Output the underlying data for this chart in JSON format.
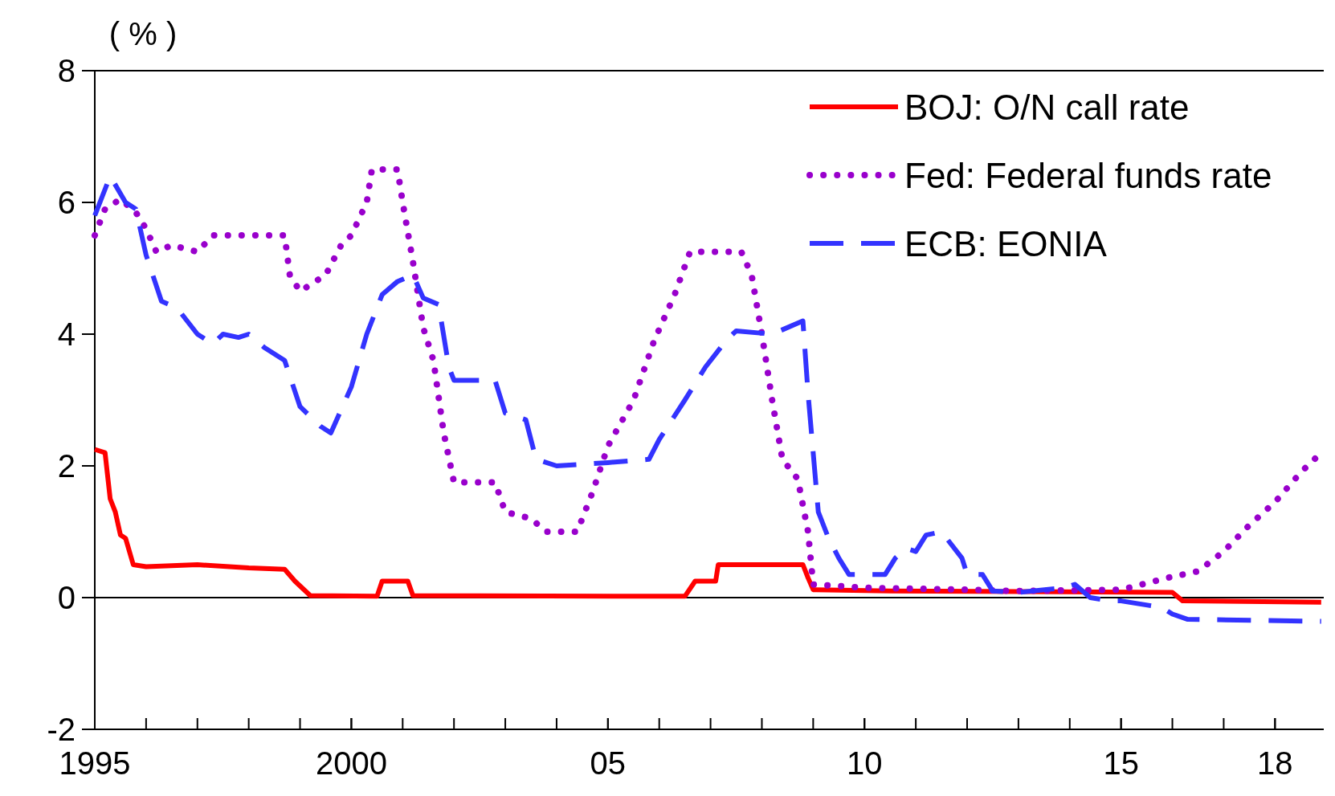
{
  "chart_data": {
    "type": "line",
    "ylabel": "( % )",
    "xlim": [
      1995,
      2018.95
    ],
    "ylim": [
      -2,
      8
    ],
    "yticks": [
      -2,
      0,
      2,
      4,
      6,
      8
    ],
    "xticks": [
      {
        "value": 1995,
        "label": "1995"
      },
      {
        "value": 2000,
        "label": "2000"
      },
      {
        "value": 2005,
        "label": "05"
      },
      {
        "value": 2010,
        "label": "10"
      },
      {
        "value": 2015,
        "label": "15"
      },
      {
        "value": 2018,
        "label": "18"
      },
      {
        "value": 1996,
        "label": null
      },
      {
        "value": 1997,
        "label": null
      },
      {
        "value": 1998,
        "label": null
      },
      {
        "value": 1999,
        "label": null
      },
      {
        "value": 2000,
        "label": null
      },
      {
        "value": 2001,
        "label": null
      },
      {
        "value": 2002,
        "label": null
      },
      {
        "value": 2003,
        "label": null
      },
      {
        "value": 2004,
        "label": null
      },
      {
        "value": 2005,
        "label": null
      },
      {
        "value": 2006,
        "label": null
      },
      {
        "value": 2007,
        "label": null
      },
      {
        "value": 2008,
        "label": null
      },
      {
        "value": 2009,
        "label": null
      },
      {
        "value": 2010,
        "label": null
      },
      {
        "value": 2011,
        "label": null
      },
      {
        "value": 2012,
        "label": null
      },
      {
        "value": 2013,
        "label": null
      },
      {
        "value": 2014,
        "label": null
      },
      {
        "value": 2015,
        "label": null
      },
      {
        "value": 2016,
        "label": null
      },
      {
        "value": 2017,
        "label": null
      },
      {
        "value": 2018,
        "label": null
      }
    ],
    "grid": false,
    "legend": "top right",
    "ref_lines": [
      {
        "axis": "y",
        "value": 0,
        "label": null,
        "color": "#000000"
      }
    ],
    "series": [
      {
        "name": "BOJ: O/N call rate",
        "color": "#ff0000",
        "line_style": "solid",
        "x": [
          1995,
          1995.2,
          1995.3,
          1995.4,
          1995.5,
          1995.6,
          1995.75,
          1996,
          1997,
          1998,
          1998.7,
          1998.9,
          1999.2,
          2000.5,
          2000.6,
          2001.1,
          2001.2,
          2006.5,
          2006.7,
          2007.1,
          2007.15,
          2008.8,
          2008.9,
          2009,
          2010.5,
          2016,
          2016.2,
          2018.9
        ],
        "values": [
          2.25,
          2.2,
          1.5,
          1.3,
          0.95,
          0.9,
          0.5,
          0.47,
          0.5,
          0.45,
          0.43,
          0.25,
          0.03,
          0.02,
          0.25,
          0.25,
          0.03,
          0.02,
          0.25,
          0.25,
          0.5,
          0.5,
          0.3,
          0.12,
          0.1,
          0.08,
          -0.05,
          -0.07
        ]
      },
      {
        "name": "Fed: Federal funds rate",
        "color": "#9900cc",
        "line_style": "dotted",
        "x": [
          1995,
          1995.2,
          1995.5,
          1995.8,
          1996,
          1996.2,
          1996.5,
          1997,
          1997.3,
          1998,
          1998.7,
          1998.8,
          1999,
          1999.5,
          1999.8,
          2000,
          2000.3,
          2000.4,
          2000.9,
          2001,
          2001.2,
          2001.4,
          2001.6,
          2001.8,
          2002,
          2002.8,
          2003,
          2003.5,
          2003.8,
          2004.4,
          2004.7,
          2005,
          2005.5,
          2005.9,
          2006.3,
          2006.6,
          2007.6,
          2007.8,
          2008,
          2008.2,
          2008.4,
          2008.7,
          2008.9,
          2009,
          2010,
          2012,
          2013,
          2015,
          2015.9,
          2016.5,
          2017,
          2017.5,
          2018,
          2018.5,
          2018.9
        ],
        "values": [
          5.5,
          5.9,
          6.05,
          5.85,
          5.6,
          5.25,
          5.35,
          5.25,
          5.5,
          5.5,
          5.5,
          4.9,
          4.65,
          4.9,
          5.35,
          5.5,
          6,
          6.5,
          6.5,
          6,
          5.1,
          4.1,
          3.6,
          2.5,
          1.75,
          1.75,
          1.3,
          1.2,
          1,
          1,
          1.6,
          2.3,
          3,
          3.9,
          4.6,
          5.25,
          5.25,
          4.9,
          4,
          3,
          2.1,
          1.8,
          1,
          0.2,
          0.15,
          0.12,
          0.1,
          0.12,
          0.3,
          0.4,
          0.7,
          1.1,
          1.45,
          1.9,
          2.2
        ]
      },
      {
        "name": "ECB: EONIA",
        "color": "#3333ff",
        "line_style": "dashed",
        "x": [
          1995,
          1995.3,
          1995.6,
          1995.8,
          1996,
          1996.3,
          1996.6,
          1997,
          1997.3,
          1997.5,
          1997.8,
          1998,
          1998.3,
          1998.7,
          1999,
          1999.4,
          1999.6,
          2000,
          2000.3,
          2000.6,
          2000.9,
          2001.2,
          2001.4,
          2001.7,
          2001.9,
          2002,
          2002.8,
          2003,
          2003.4,
          2003.6,
          2004,
          2005,
          2005.8,
          2006,
          2006.5,
          2006.9,
          2007.3,
          2007.5,
          2008.2,
          2008.8,
          2008.9,
          2009.1,
          2009.3,
          2009.5,
          2009.7,
          2010.4,
          2010.6,
          2010.8,
          2011,
          2011.2,
          2011.5,
          2011.9,
          2012,
          2012.3,
          2012.5,
          2013,
          2013.9,
          2014.1,
          2014.4,
          2014.8,
          2015,
          2015.8,
          2016,
          2016.3,
          2018.9
        ],
        "values": [
          5.8,
          6.4,
          6,
          5.9,
          5.2,
          4.5,
          4.4,
          4,
          3.85,
          4,
          3.95,
          4,
          3.8,
          3.6,
          2.9,
          2.6,
          2.5,
          3.2,
          4,
          4.6,
          4.8,
          4.9,
          4.55,
          4.45,
          3.5,
          3.3,
          3.3,
          2.8,
          2.7,
          2.1,
          2,
          2.05,
          2.1,
          2.4,
          3,
          3.5,
          3.9,
          4.05,
          4,
          4.2,
          3.1,
          1.3,
          0.9,
          0.6,
          0.35,
          0.35,
          0.6,
          0.75,
          0.7,
          0.95,
          1,
          0.6,
          0.35,
          0.35,
          0.1,
          0.08,
          0.15,
          0.2,
          0,
          -0.05,
          -0.05,
          -0.15,
          -0.25,
          -0.33,
          -0.36
        ]
      }
    ]
  }
}
